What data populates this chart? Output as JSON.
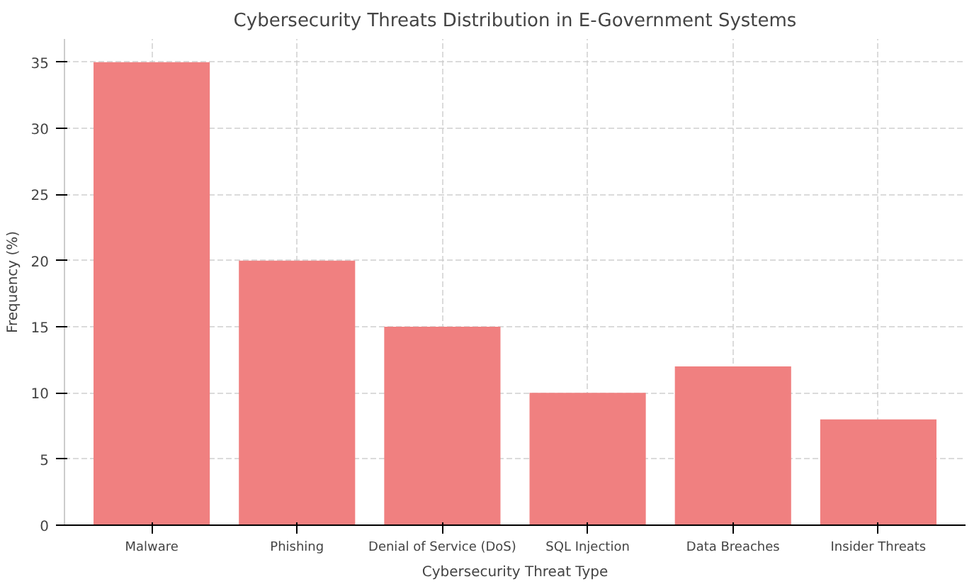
{
  "chart_data": {
    "type": "bar",
    "title": "Cybersecurity Threats Distribution in E-Government Systems",
    "xlabel": "Cybersecurity Threat Type",
    "ylabel": "Frequency (%)",
    "categories": [
      "Malware",
      "Phishing",
      "Denial of Service (DoS)",
      "SQL Injection",
      "Data Breaches",
      "Insider Threats"
    ],
    "values": [
      35,
      20,
      15,
      10,
      12,
      8
    ],
    "color": "#f08080",
    "ylim": [
      0,
      36.75
    ],
    "yticks": [
      0,
      5,
      10,
      15,
      20,
      25,
      30,
      35
    ],
    "grid": true
  }
}
